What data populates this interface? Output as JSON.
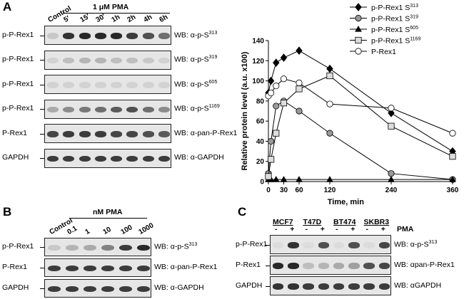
{
  "panelA": {
    "letter": "A",
    "treatment": "1 μM PMA",
    "lanes": [
      "Control",
      "5′",
      "15′",
      "30′",
      "1h",
      "2h",
      "4h",
      "6h"
    ],
    "rows": [
      {
        "label": "p-P-Rex1",
        "wb": "WB: α-p-S",
        "sup": "313",
        "intensity": [
          0.15,
          0.9,
          0.95,
          0.95,
          0.95,
          0.85,
          0.75,
          0.6
        ]
      },
      {
        "label": "p-P-Rex1",
        "wb": "WB: α-p-S",
        "sup": "319",
        "intensity": [
          0.1,
          0.2,
          0.25,
          0.25,
          0.2,
          0.2,
          0.15,
          0.1
        ]
      },
      {
        "label": "p-P-Rex1",
        "wb": "WB: α-p-S",
        "sup": "605",
        "intensity": [
          0.1,
          0.1,
          0.1,
          0.1,
          0.1,
          0.1,
          0.1,
          0.1
        ]
      },
      {
        "label": "p-P-Rex1",
        "wb": "WB: α-p-S",
        "sup": "1169",
        "intensity": [
          0.3,
          0.45,
          0.55,
          0.6,
          0.7,
          0.75,
          0.6,
          0.45
        ]
      },
      {
        "label": "P-Rex1",
        "wb": "WB: α-pan-P-Rex1",
        "sup": "",
        "intensity": [
          0.8,
          0.85,
          0.85,
          0.85,
          0.8,
          0.8,
          0.75,
          0.7
        ]
      },
      {
        "label": "GAPDH",
        "wb": "WB: α-GAPDH",
        "sup": "",
        "intensity": [
          0.85,
          0.85,
          0.85,
          0.85,
          0.85,
          0.85,
          0.85,
          0.85
        ]
      }
    ]
  },
  "chart_data": {
    "type": "line",
    "xlabel": "Time, min",
    "ylabel": "Relative protein level (a.u. x100)",
    "xticks": [
      0,
      30,
      60,
      120,
      240,
      360
    ],
    "yticks": [
      0,
      20,
      40,
      60,
      80,
      100,
      120,
      140
    ],
    "xlim": [
      0,
      360
    ],
    "ylim": [
      0,
      140
    ],
    "legend_position": "top-right",
    "series": [
      {
        "name": "p-P-Rex1 S",
        "sup": "313",
        "marker": "diamond",
        "fill": "#000000",
        "x": [
          0,
          5,
          15,
          30,
          60,
          120,
          240,
          360
        ],
        "y": [
          88,
          100,
          118,
          123,
          130,
          112,
          68,
          30
        ]
      },
      {
        "name": "p-P-Rex1 S",
        "sup": "319",
        "marker": "circle",
        "fill": "#999999",
        "x": [
          0,
          5,
          15,
          30,
          60,
          120,
          240,
          360
        ],
        "y": [
          8,
          40,
          75,
          80,
          70,
          48,
          8,
          2
        ]
      },
      {
        "name": "p-P-Rex1 S",
        "sup": "605",
        "marker": "triangle",
        "fill": "#000000",
        "x": [
          0,
          5,
          15,
          30,
          60,
          120,
          240,
          360
        ],
        "y": [
          2,
          2,
          2,
          2,
          2,
          2,
          2,
          2
        ]
      },
      {
        "name": "p-P-Rex1 S",
        "sup": "1169",
        "marker": "square",
        "fill": "#dddddd",
        "x": [
          0,
          5,
          15,
          30,
          60,
          120,
          240,
          360
        ],
        "y": [
          5,
          22,
          48,
          78,
          92,
          105,
          55,
          25
        ]
      },
      {
        "name": "P-Rex1",
        "sup": "",
        "marker": "circle",
        "fill": "#ffffff",
        "x": [
          0,
          5,
          15,
          30,
          60,
          120,
          240,
          360
        ],
        "y": [
          85,
          88,
          95,
          102,
          98,
          77,
          73,
          48
        ]
      }
    ]
  },
  "panelB": {
    "letter": "B",
    "treatment": "nM PMA",
    "lanes": [
      "Control",
      "0.1",
      "1",
      "10",
      "100",
      "1000"
    ],
    "rows": [
      {
        "label": "p-P-Rex1",
        "wb": "WB: α-p-S",
        "sup": "313",
        "intensity": [
          0.15,
          0.25,
          0.3,
          0.5,
          0.85,
          0.95
        ]
      },
      {
        "label": "P-Rex1",
        "wb": "WB: α-pan-P-Rex1",
        "sup": "",
        "intensity": [
          0.85,
          0.85,
          0.85,
          0.85,
          0.85,
          0.85
        ]
      },
      {
        "label": "GAPDH",
        "wb": "WB: α-GAPDH",
        "sup": "",
        "intensity": [
          0.85,
          0.85,
          0.85,
          0.85,
          0.85,
          0.85
        ]
      }
    ]
  },
  "panelC": {
    "letter": "C",
    "cell_lines": [
      "MCF7",
      "T47D",
      "BT474",
      "SKBR3"
    ],
    "pma_label": "PMA",
    "signs": [
      "-",
      "+",
      "-",
      "+",
      "-",
      "+",
      "-",
      "+"
    ],
    "rows": [
      {
        "label": "p-P-Rex1",
        "wb": "WB: α-p-S",
        "sup": "313",
        "intensity": [
          0.05,
          0.9,
          0.05,
          0.75,
          0.05,
          0.75,
          0.05,
          0.8
        ]
      },
      {
        "label": "P-Rex1",
        "wb": "WB: αpan-P-Rex1",
        "sup": "",
        "intensity": [
          0.95,
          0.95,
          0.2,
          0.25,
          0.3,
          0.35,
          0.75,
          0.8
        ]
      },
      {
        "label": "GAPDH",
        "wb": "WB: αGAPDH",
        "sup": "",
        "intensity": [
          0.9,
          0.9,
          0.85,
          0.85,
          0.85,
          0.85,
          0.85,
          0.85
        ]
      }
    ]
  }
}
